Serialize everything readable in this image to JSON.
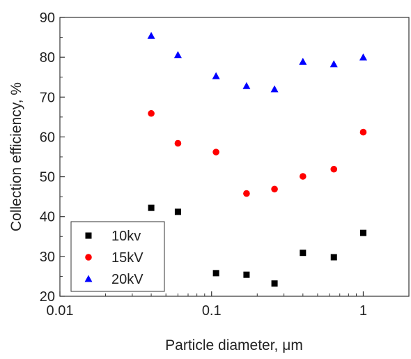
{
  "chart_data": {
    "type": "scatter",
    "xlabel": "Particle diameter, μm",
    "ylabel": "Collection efficiency, %",
    "xscale": "log",
    "xlim": [
      0.01,
      2
    ],
    "ylim": [
      20,
      90
    ],
    "xticks": [
      {
        "value": 0.01,
        "label": "0.01"
      },
      {
        "value": 0.1,
        "label": "0.1"
      },
      {
        "value": 1,
        "label": "1"
      }
    ],
    "yticks": [
      {
        "value": 20,
        "label": "20"
      },
      {
        "value": 30,
        "label": "30"
      },
      {
        "value": 40,
        "label": "40"
      },
      {
        "value": 50,
        "label": "50"
      },
      {
        "value": 60,
        "label": "60"
      },
      {
        "value": 70,
        "label": "70"
      },
      {
        "value": 80,
        "label": "80"
      },
      {
        "value": 90,
        "label": "90"
      }
    ],
    "grid": false,
    "legend_position": "bottom-left",
    "series": [
      {
        "name": "10kv",
        "marker": "square",
        "color": "#000000",
        "x": [
          0.04,
          0.06,
          0.107,
          0.17,
          0.26,
          0.4,
          0.64,
          1.0
        ],
        "y": [
          42.2,
          41.2,
          25.8,
          25.4,
          23.2,
          30.9,
          29.8,
          35.9
        ]
      },
      {
        "name": "15kV",
        "marker": "circle",
        "color": "#ff0000",
        "x": [
          0.04,
          0.06,
          0.107,
          0.17,
          0.26,
          0.4,
          0.64,
          1.0
        ],
        "y": [
          65.9,
          58.4,
          56.2,
          45.8,
          46.9,
          50.1,
          51.9,
          61.2
        ]
      },
      {
        "name": "20kV",
        "marker": "triangle",
        "color": "#0000ff",
        "x": [
          0.04,
          0.06,
          0.107,
          0.17,
          0.26,
          0.4,
          0.64,
          1.0
        ],
        "y": [
          85.4,
          80.6,
          75.3,
          72.8,
          72.0,
          78.9,
          78.3,
          80.0
        ]
      }
    ]
  }
}
